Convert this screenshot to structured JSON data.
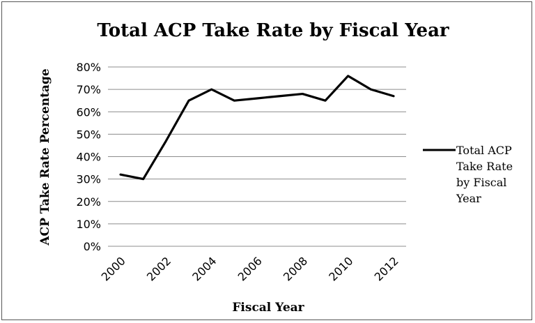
{
  "chart_data": {
    "type": "line",
    "title": "Total ACP Take Rate by Fiscal Year",
    "xlabel": "Fiscal Year",
    "ylabel": "ACP Take Rate Percentage",
    "x": [
      2000,
      2001,
      2002,
      2003,
      2004,
      2005,
      2006,
      2007,
      2008,
      2009,
      2010,
      2011,
      2012
    ],
    "x_tick_labels": [
      "2000",
      "2002",
      "2004",
      "2006",
      "2008",
      "2010",
      "2012"
    ],
    "y_tick_labels": [
      "0%",
      "10%",
      "20%",
      "30%",
      "40%",
      "50%",
      "60%",
      "70%",
      "80%"
    ],
    "ylim": [
      0,
      80
    ],
    "grid": true,
    "legend_position": "right",
    "series": [
      {
        "name": "Total ACP Take Rate by Fiscal Year",
        "legend_lines": [
          "Total ACP",
          "Take Rate",
          "by Fiscal",
          "Year"
        ],
        "color": "#000000",
        "values": [
          32,
          30,
          47,
          65,
          70,
          65,
          66,
          67,
          68,
          65,
          76,
          70,
          67
        ]
      }
    ]
  }
}
